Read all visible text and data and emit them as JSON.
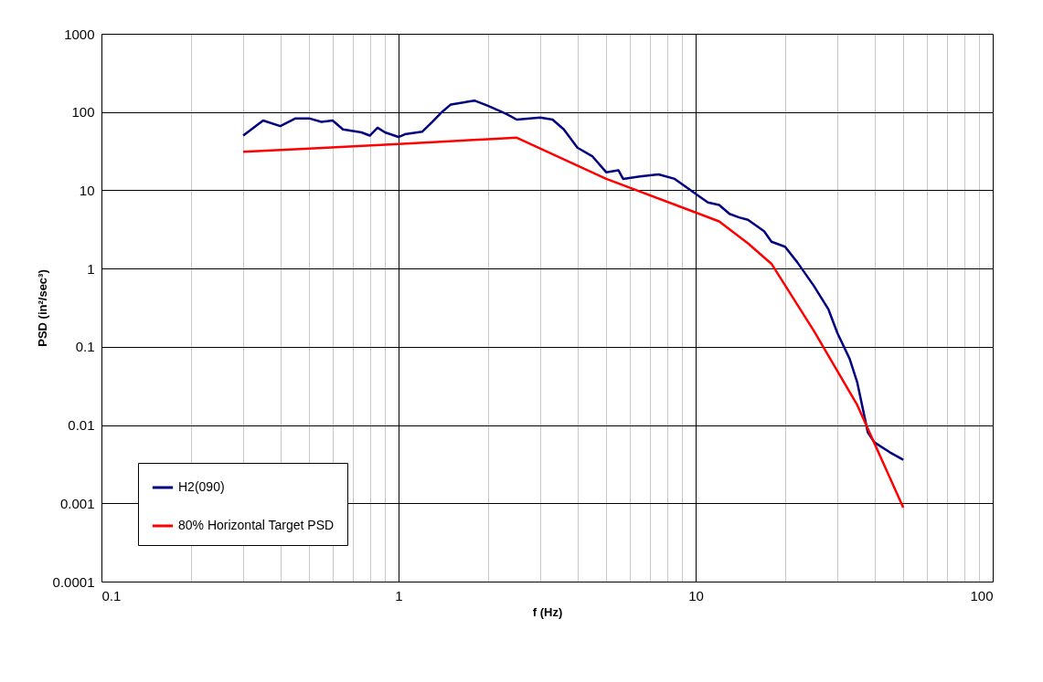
{
  "chart_data": {
    "type": "line",
    "xlabel": "f (Hz)",
    "ylabel": "PSD (in²/sec³)",
    "log": "xy",
    "grid": true,
    "legend": "bottom left",
    "line_style": "solid",
    "marker": "none",
    "xlim": [
      0.1,
      100
    ],
    "ylim": [
      0.0001,
      1000
    ],
    "xticks": [
      0.1,
      {
        "value": 0.2,
        "label": null
      },
      {
        "value": 0.3,
        "label": null
      },
      {
        "value": 0.4,
        "label": null
      },
      {
        "value": 0.5,
        "label": null
      },
      {
        "value": 0.6,
        "label": null
      },
      {
        "value": 0.7,
        "label": null
      },
      {
        "value": 0.8,
        "label": null
      },
      {
        "value": 0.9,
        "label": null
      },
      1,
      {
        "value": 2,
        "label": null
      },
      {
        "value": 3,
        "label": null
      },
      {
        "value": 4,
        "label": null
      },
      {
        "value": 5,
        "label": null
      },
      {
        "value": 6,
        "label": null
      },
      {
        "value": 7,
        "label": null
      },
      {
        "value": 8,
        "label": null
      },
      {
        "value": 9,
        "label": null
      },
      10,
      {
        "value": 20,
        "label": null
      },
      {
        "value": 30,
        "label": null
      },
      {
        "value": 40,
        "label": null
      },
      {
        "value": 50,
        "label": null
      },
      {
        "value": 60,
        "label": null
      },
      {
        "value": 70,
        "label": null
      },
      {
        "value": 80,
        "label": null
      },
      {
        "value": 90,
        "label": null
      },
      100
    ],
    "yticks": [
      0.0001,
      0.001,
      0.01,
      0.1,
      1,
      10,
      100,
      1000
    ],
    "series": [
      {
        "name": "H2(090)",
        "color": "#000080",
        "x": [
          0.3,
          0.35,
          0.4,
          0.45,
          0.5,
          0.55,
          0.6,
          0.65,
          0.75,
          0.8,
          0.85,
          0.9,
          1.0,
          1.05,
          1.2,
          1.3,
          1.4,
          1.5,
          1.7,
          1.8,
          2.0,
          2.3,
          2.5,
          3.0,
          3.3,
          3.6,
          4.0,
          4.5,
          5.0,
          5.5,
          5.7,
          6.5,
          7.5,
          8.5,
          10,
          11,
          12,
          13,
          14,
          15,
          17,
          18,
          20,
          22,
          25,
          28,
          30,
          33,
          35,
          38,
          40,
          45,
          50
        ],
        "values": [
          50,
          78,
          66,
          83,
          83,
          75,
          78,
          60,
          55,
          50,
          63,
          55,
          48,
          52,
          56,
          75,
          100,
          125,
          135,
          140,
          120,
          95,
          80,
          85,
          80,
          60,
          35,
          27,
          17,
          18,
          14,
          15,
          16,
          14,
          9,
          7,
          6.5,
          5,
          4.5,
          4.2,
          3,
          2.2,
          1.9,
          1.2,
          0.6,
          0.3,
          0.15,
          0.07,
          0.035,
          0.008,
          0.006,
          0.0045,
          0.0036
        ]
      },
      {
        "name": "80% Horizontal Target PSD",
        "color": "#ff0000",
        "x": [
          0.3,
          0.5,
          1,
          2,
          2.5,
          5,
          10,
          12,
          15,
          18,
          25,
          35,
          50
        ],
        "values": [
          31,
          34,
          39,
          45,
          47,
          14,
          5.2,
          4.0,
          2.1,
          1.15,
          0.16,
          0.018,
          0.00088
        ]
      }
    ]
  }
}
